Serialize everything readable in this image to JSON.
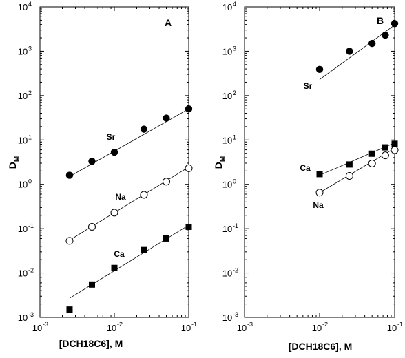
{
  "chart_data": [
    {
      "type": "scatter",
      "panel_label": "A",
      "xlabel": "[DCH18C6], M",
      "ylabel": "D",
      "ylabel_sub": "M",
      "x_scale": "log",
      "y_scale": "log",
      "xlim": [
        0.001,
        0.1
      ],
      "ylim": [
        0.001,
        10000
      ],
      "x_ticks": [
        {
          "base": "10",
          "exp": "-3"
        },
        {
          "base": "10",
          "exp": "-2"
        },
        {
          "base": "10",
          "exp": "-1"
        }
      ],
      "y_ticks": [
        {
          "base": "10",
          "exp": "-3"
        },
        {
          "base": "10",
          "exp": "-2"
        },
        {
          "base": "10",
          "exp": "-1"
        },
        {
          "base": "10",
          "exp": "0"
        },
        {
          "base": "10",
          "exp": "1"
        },
        {
          "base": "10",
          "exp": "2"
        },
        {
          "base": "10",
          "exp": "3"
        },
        {
          "base": "10",
          "exp": "4"
        }
      ],
      "grid": false,
      "series": [
        {
          "name": "Sr",
          "marker": "filled-circle",
          "x": [
            0.0025,
            0.005,
            0.01,
            0.025,
            0.05,
            0.1
          ],
          "y": [
            1.6,
            3.3,
            5.3,
            17.5,
            31,
            50
          ],
          "fit": {
            "x": [
              0.0025,
              0.1
            ],
            "y": [
              1.5,
              50
            ]
          }
        },
        {
          "name": "Na",
          "marker": "open-circle",
          "x": [
            0.0025,
            0.005,
            0.01,
            0.025,
            0.05,
            0.1
          ],
          "y": [
            0.053,
            0.11,
            0.23,
            0.58,
            1.15,
            2.3
          ],
          "fit": {
            "x": [
              0.0025,
              0.1
            ],
            "y": [
              0.055,
              2.45
            ]
          }
        },
        {
          "name": "Ca",
          "marker": "filled-square",
          "x": [
            0.0025,
            0.005,
            0.01,
            0.025,
            0.05,
            0.1
          ],
          "y": [
            0.0015,
            0.0055,
            0.013,
            0.033,
            0.06,
            0.11
          ],
          "fit": {
            "x": [
              0.0025,
              0.1
            ],
            "y": [
              0.0027,
              0.12
            ]
          }
        }
      ]
    },
    {
      "type": "scatter",
      "panel_label": "B",
      "xlabel": "[DCH18C6], M",
      "ylabel": "D",
      "ylabel_sub": "M",
      "x_scale": "log",
      "y_scale": "log",
      "xlim": [
        0.001,
        0.1
      ],
      "ylim": [
        0.001,
        10000
      ],
      "x_ticks": [
        {
          "base": "10",
          "exp": "-3"
        },
        {
          "base": "10",
          "exp": "-2"
        },
        {
          "base": "10",
          "exp": "-1"
        }
      ],
      "y_ticks": [
        {
          "base": "10",
          "exp": "-3"
        },
        {
          "base": "10",
          "exp": "-2"
        },
        {
          "base": "10",
          "exp": "-1"
        },
        {
          "base": "10",
          "exp": "0"
        },
        {
          "base": "10",
          "exp": "1"
        },
        {
          "base": "10",
          "exp": "2"
        },
        {
          "base": "10",
          "exp": "3"
        },
        {
          "base": "10",
          "exp": "4"
        }
      ],
      "grid": false,
      "series": [
        {
          "name": "Sr",
          "marker": "filled-circle",
          "x": [
            0.01,
            0.025,
            0.05,
            0.075,
            0.1
          ],
          "y": [
            390,
            1000,
            1500,
            2300,
            4200
          ],
          "fit": {
            "x": [
              0.01,
              0.1
            ],
            "y": [
              230,
              3900
            ]
          }
        },
        {
          "name": "Ca",
          "marker": "filled-square",
          "x": [
            0.01,
            0.025,
            0.05,
            0.075,
            0.1
          ],
          "y": [
            1.7,
            2.8,
            4.9,
            6.8,
            8.2
          ],
          "fit": {
            "x": [
              0.01,
              0.1
            ],
            "y": [
              1.6,
              8.6
            ]
          }
        },
        {
          "name": "Na",
          "marker": "open-circle",
          "x": [
            0.01,
            0.025,
            0.05,
            0.075,
            0.1
          ],
          "y": [
            0.65,
            1.55,
            2.95,
            4.5,
            5.9
          ],
          "fit": {
            "x": [
              0.01,
              0.1
            ],
            "y": [
              0.65,
              6.5
            ]
          }
        }
      ]
    }
  ]
}
